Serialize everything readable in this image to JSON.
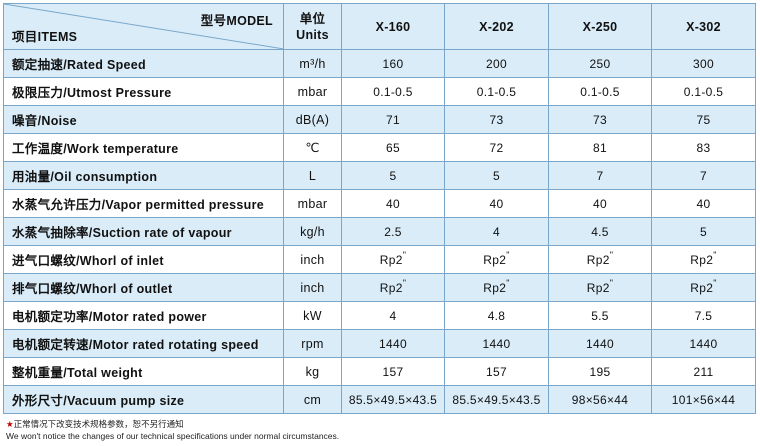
{
  "header": {
    "model_label": "型号MODEL",
    "items_label": "项目ITEMS",
    "unit_label_cn": "单位",
    "unit_label_en": "Units",
    "models": [
      "X-160",
      "X-202",
      "X-250",
      "X-302"
    ]
  },
  "rows": [
    {
      "item": "额定抽速/Rated Speed",
      "unit": "m³/h",
      "values": [
        "160",
        "200",
        "250",
        "300"
      ]
    },
    {
      "item": "极限压力/Utmost Pressure",
      "unit": "mbar",
      "values": [
        "0.1-0.5",
        "0.1-0.5",
        "0.1-0.5",
        "0.1-0.5"
      ]
    },
    {
      "item": "噪音/Noise",
      "unit": "dB(A)",
      "values": [
        "71",
        "73",
        "73",
        "75"
      ]
    },
    {
      "item": "工作温度/Work temperature",
      "unit": "℃",
      "values": [
        "65",
        "72",
        "81",
        "83"
      ]
    },
    {
      "item": "用油量/Oil consumption",
      "unit": "L",
      "values": [
        "5",
        "5",
        "7",
        "7"
      ]
    },
    {
      "item": "水蒸气允许压力/Vapor permitted pressure",
      "unit": "mbar",
      "values": [
        "40",
        "40",
        "40",
        "40"
      ]
    },
    {
      "item": "水蒸气抽除率/Suction rate of vapour",
      "unit": "kg/h",
      "values": [
        "2.5",
        "4",
        "4.5",
        "5"
      ]
    },
    {
      "item": "进气口螺纹/Whorl of inlet",
      "unit": "inch",
      "values": [
        "Rp2",
        "Rp2",
        "Rp2",
        "Rp2"
      ],
      "sup": "\""
    },
    {
      "item": "排气口螺纹/Whorl of outlet",
      "unit": "inch",
      "values": [
        "Rp2",
        "Rp2",
        "Rp2",
        "Rp2"
      ],
      "sup": "\""
    },
    {
      "item": "电机额定功率/Motor rated power",
      "unit": "kW",
      "values": [
        "4",
        "4.8",
        "5.5",
        "7.5"
      ]
    },
    {
      "item": "电机额定转速/Motor rated rotating speed",
      "unit": "rpm",
      "values": [
        "1440",
        "1440",
        "1440",
        "1440"
      ]
    },
    {
      "item": "整机重量/Total weight",
      "unit": "kg",
      "values": [
        "157",
        "157",
        "195",
        "211"
      ]
    },
    {
      "item": "外形尺寸/Vacuum pump size",
      "unit": "cm",
      "values": [
        "85.5×49.5×43.5",
        "85.5×49.5×43.5",
        "98×56×44",
        "101×56×44"
      ]
    }
  ],
  "footnote": {
    "star": "★",
    "cn": "正常情况下改变技术规格参数，恕不另行通知",
    "en": "We won't notice the changes of our technical specifications under normal circumstances."
  },
  "colors": {
    "border": "#7aa7c9",
    "row_fill": "#d9ecf8",
    "star": "#c00000"
  }
}
